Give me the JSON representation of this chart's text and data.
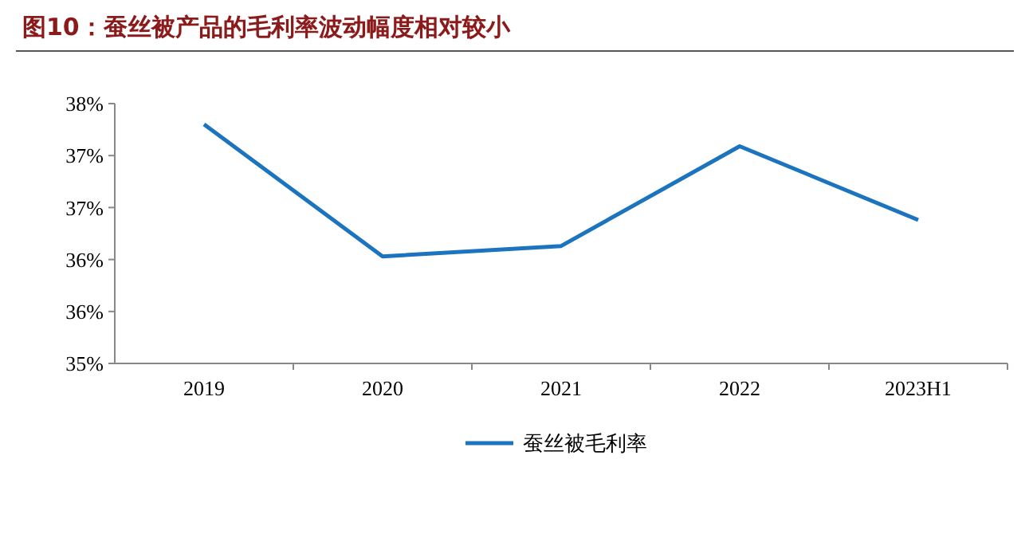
{
  "chart_data": {
    "type": "line",
    "title": "图10：蚕丝被产品的毛利率波动幅度相对较小",
    "categories": [
      "2019",
      "2020",
      "2021",
      "2022",
      "2023H1"
    ],
    "series": [
      {
        "name": "蚕丝被毛利率",
        "color": "#1c74bf",
        "values": [
          37.3,
          36.03,
          36.13,
          37.09,
          36.38
        ]
      }
    ],
    "ylim": [
      35,
      37.5
    ],
    "yticks": [
      {
        "value": 35,
        "label": "35%"
      },
      {
        "value": 35.5,
        "label": "36%"
      },
      {
        "value": 36,
        "label": "36%"
      },
      {
        "value": 36.5,
        "label": "37%"
      },
      {
        "value": 37,
        "label": "37%"
      },
      {
        "value": 37.5,
        "label": "38%"
      }
    ],
    "grid": false,
    "legend": "bottom",
    "marker": "none",
    "line_style": "solid"
  }
}
